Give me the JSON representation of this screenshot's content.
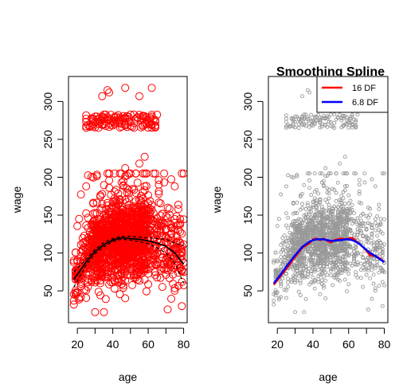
{
  "chart_data": [
    {
      "type": "scatter",
      "title": "",
      "xlabel": "age",
      "ylabel": "wage",
      "xlim": [
        15,
        82
      ],
      "ylim": [
        8,
        333
      ],
      "xticks": [
        20,
        40,
        60,
        80
      ],
      "yticks": [
        50,
        100,
        150,
        200,
        250,
        300
      ],
      "grid": false,
      "point_color": "#ff0000",
      "fit_color": "#000000",
      "scatter": {
        "clusters": [
          {
            "x_range": [
              18,
              80
            ],
            "y_mean": 105,
            "y_sd": 28
          },
          {
            "x_range": [
              25,
              65
            ],
            "y_range": [
              265,
              283
            ]
          }
        ],
        "notable_points": [
          {
            "x": 37,
            "y": 315
          },
          {
            "x": 38,
            "y": 312
          },
          {
            "x": 34,
            "y": 307
          },
          {
            "x": 47,
            "y": 318
          },
          {
            "x": 62,
            "y": 318
          },
          {
            "x": 55,
            "y": 307
          },
          {
            "x": 28,
            "y": 268
          },
          {
            "x": 58,
            "y": 227
          },
          {
            "x": 55,
            "y": 218
          },
          {
            "x": 47,
            "y": 212
          },
          {
            "x": 75,
            "y": 188
          },
          {
            "x": 77,
            "y": 158
          },
          {
            "x": 80,
            "y": 75
          },
          {
            "x": 18,
            "y": 32
          },
          {
            "x": 30,
            "y": 22
          }
        ]
      },
      "fit": {
        "x": [
          18,
          25,
          30,
          35,
          40,
          45,
          50,
          55,
          60,
          65,
          70,
          75,
          80
        ],
        "y": [
          65,
          88,
          102,
          111,
          117,
          120,
          119,
          118,
          116,
          113,
          109,
          100,
          85
        ]
      },
      "bands": [
        {
          "x": [
            18,
            25,
            30,
            35,
            40,
            45,
            50,
            55,
            60,
            65,
            70,
            75,
            80
          ],
          "y": [
            75,
            92,
            105,
            114,
            119,
            122,
            122,
            121,
            120,
            119,
            118,
            113,
            110
          ]
        },
        {
          "x": [
            18,
            25,
            30,
            35,
            40,
            45,
            50,
            55,
            60,
            65,
            70,
            75,
            80
          ],
          "y": [
            55,
            84,
            99,
            108,
            115,
            118,
            117,
            115,
            112,
            107,
            100,
            87,
            60
          ]
        }
      ]
    },
    {
      "type": "scatter",
      "title": "Smoothing Spline",
      "xlabel": "age",
      "ylabel": "wage",
      "xlim": [
        15,
        82
      ],
      "ylim": [
        8,
        333
      ],
      "xticks": [
        20,
        40,
        60,
        80
      ],
      "yticks": [
        50,
        100,
        150,
        200,
        250,
        300
      ],
      "grid": false,
      "legend_position": "top-right",
      "point_color": "#999999",
      "scatter": {
        "clusters": [
          {
            "x_range": [
              18,
              80
            ],
            "y_mean": 105,
            "y_sd": 28
          },
          {
            "x_range": [
              25,
              65
            ],
            "y_range": [
              265,
              283
            ]
          }
        ],
        "notable_points": [
          {
            "x": 37,
            "y": 315
          },
          {
            "x": 38,
            "y": 312
          },
          {
            "x": 34,
            "y": 307
          },
          {
            "x": 47,
            "y": 318
          },
          {
            "x": 62,
            "y": 318
          },
          {
            "x": 55,
            "y": 307
          },
          {
            "x": 28,
            "y": 268
          },
          {
            "x": 58,
            "y": 227
          },
          {
            "x": 55,
            "y": 218
          },
          {
            "x": 47,
            "y": 212
          },
          {
            "x": 75,
            "y": 188
          },
          {
            "x": 77,
            "y": 158
          },
          {
            "x": 80,
            "y": 75
          },
          {
            "x": 18,
            "y": 32
          },
          {
            "x": 30,
            "y": 22
          }
        ]
      },
      "series": [
        {
          "name": "16 DF",
          "color": "#ff0000",
          "x": [
            18,
            22,
            26,
            30,
            34,
            38,
            40,
            42,
            44,
            46,
            48,
            50,
            52,
            54,
            56,
            58,
            60,
            62,
            64,
            66,
            68,
            70,
            72,
            75,
            78,
            80
          ],
          "y": [
            58,
            70,
            82,
            95,
            107,
            113,
            118,
            119,
            117,
            119,
            116,
            114,
            117,
            118,
            119,
            118,
            119,
            120,
            116,
            112,
            108,
            103,
            97,
            96,
            92,
            88
          ]
        },
        {
          "name": "6.8 DF",
          "color": "#0000ff",
          "x": [
            18,
            22,
            26,
            30,
            34,
            38,
            40,
            42,
            44,
            46,
            48,
            50,
            52,
            54,
            56,
            58,
            60,
            62,
            64,
            66,
            68,
            70,
            72,
            75,
            78,
            80
          ],
          "y": [
            60,
            72,
            85,
            97,
            108,
            115,
            117,
            118,
            118,
            118,
            117,
            116,
            116,
            117,
            117,
            118,
            118,
            117,
            115,
            112,
            108,
            104,
            100,
            96,
            91,
            88
          ]
        }
      ]
    }
  ]
}
